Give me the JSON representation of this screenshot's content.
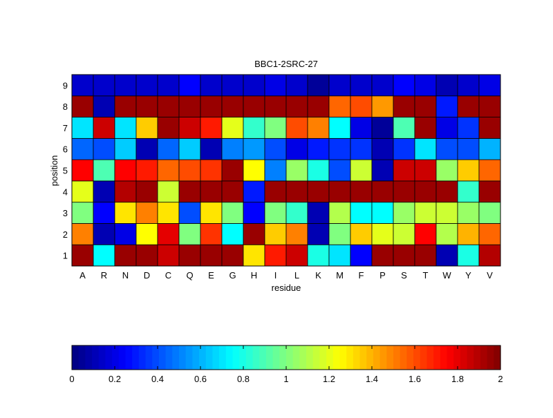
{
  "chart_data": {
    "type": "heatmap",
    "title": "BBC1-2SRC-27",
    "xlabel": "residue",
    "ylabel": "position",
    "x_categories": [
      "A",
      "R",
      "N",
      "D",
      "C",
      "Q",
      "E",
      "G",
      "H",
      "I",
      "L",
      "K",
      "M",
      "F",
      "P",
      "S",
      "T",
      "W",
      "Y",
      "V"
    ],
    "y_categories": [
      "1",
      "2",
      "3",
      "4",
      "5",
      "6",
      "7",
      "8",
      "9"
    ],
    "values": [
      [
        1.95,
        0.75,
        1.95,
        1.95,
        1.85,
        1.95,
        1.95,
        1.95,
        1.3,
        1.7,
        1.85,
        0.8,
        0.7,
        0.25,
        1.95,
        1.95,
        1.95,
        0.1,
        0.8,
        1.9
      ],
      [
        1.5,
        0.1,
        0.2,
        1.25,
        1.8,
        1.0,
        1.65,
        0.75,
        1.95,
        1.35,
        1.5,
        0.1,
        1.0,
        1.35,
        1.2,
        1.15,
        1.75,
        1.1,
        1.4,
        1.55
      ],
      [
        1.0,
        0.25,
        1.3,
        1.5,
        1.3,
        0.4,
        1.3,
        1.0,
        0.25,
        1.0,
        0.85,
        0.1,
        1.1,
        0.75,
        0.75,
        1.05,
        1.15,
        1.15,
        1.05,
        1.0
      ],
      [
        1.2,
        0.1,
        1.9,
        1.95,
        1.15,
        1.95,
        1.95,
        1.95,
        0.3,
        1.95,
        1.95,
        1.95,
        1.95,
        1.95,
        1.95,
        1.95,
        1.95,
        1.95,
        0.85,
        1.95
      ],
      [
        1.75,
        0.9,
        1.75,
        1.7,
        1.55,
        1.6,
        1.65,
        1.95,
        1.25,
        0.5,
        1.05,
        0.8,
        0.4,
        1.15,
        0.1,
        1.85,
        1.85,
        1.05,
        1.35,
        1.55
      ],
      [
        0.45,
        0.4,
        0.65,
        0.1,
        0.45,
        0.65,
        0.1,
        0.5,
        0.55,
        0.4,
        0.2,
        0.3,
        0.35,
        0.35,
        0.1,
        0.35,
        0.7,
        0.4,
        0.4,
        0.6
      ],
      [
        0.7,
        1.85,
        0.7,
        1.35,
        1.95,
        1.85,
        1.7,
        1.2,
        0.85,
        1.0,
        1.6,
        1.5,
        0.75,
        0.2,
        0.05,
        0.9,
        1.95,
        0.2,
        0.35,
        1.95
      ],
      [
        1.95,
        0.1,
        1.95,
        1.95,
        1.95,
        1.95,
        1.95,
        1.95,
        1.95,
        1.95,
        1.95,
        1.95,
        1.55,
        1.6,
        1.45,
        1.95,
        1.95,
        0.3,
        1.95,
        1.95
      ],
      [
        0.15,
        0.15,
        0.15,
        0.15,
        0.15,
        0.25,
        0.15,
        0.15,
        0.15,
        0.2,
        0.15,
        0.05,
        0.15,
        0.15,
        0.15,
        0.25,
        0.2,
        0.1,
        0.15,
        0.2
      ]
    ],
    "colorbar": {
      "range": [
        0,
        2
      ],
      "ticks": [
        "0",
        "0.2",
        "0.4",
        "0.6",
        "0.8",
        "1",
        "1.2",
        "1.4",
        "1.6",
        "1.8",
        "2"
      ],
      "placement": "bottom",
      "colormap": "jet"
    }
  }
}
